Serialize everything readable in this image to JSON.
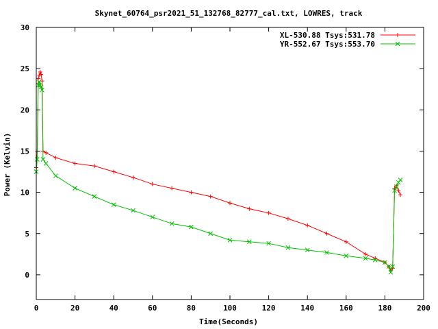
{
  "chart_data": {
    "type": "scatter",
    "title": "Skynet_60764_psr2021_51_132768_82777_cal.txt, LOWRES, track",
    "xlabel": "Time(Seconds)",
    "ylabel": "Power (Kelvin)",
    "xlim": [
      0,
      200
    ],
    "ylim": [
      -3,
      30
    ],
    "xticks": [
      0,
      20,
      40,
      60,
      80,
      100,
      120,
      140,
      160,
      180,
      200
    ],
    "yticks": [
      0,
      5,
      10,
      15,
      20,
      25,
      30
    ],
    "grid": false,
    "legend_position": "top-right",
    "series": [
      {
        "name": "XL-530.88 Tsys:531.78",
        "color": "#ff0000",
        "marker": "plus",
        "x": [
          0,
          0.5,
          1,
          1.5,
          2,
          2.5,
          3,
          3.5,
          5,
          10,
          20,
          30,
          40,
          50,
          60,
          70,
          80,
          90,
          100,
          110,
          120,
          130,
          140,
          150,
          160,
          170,
          175,
          180,
          182,
          183,
          184,
          185,
          186,
          187,
          188
        ],
        "y": [
          13,
          15,
          23.8,
          24.2,
          24.6,
          24.3,
          23.5,
          15,
          14.8,
          14.2,
          13.5,
          13.2,
          12.5,
          11.8,
          11.0,
          10.5,
          10.0,
          9.5,
          8.7,
          8.0,
          7.5,
          6.8,
          6.0,
          5.0,
          4.0,
          2.5,
          2.0,
          1.5,
          1.0,
          0.5,
          0.8,
          10.5,
          10.8,
          10.2,
          9.7
        ]
      },
      {
        "name": "YR-552.67 Tsys:553.70",
        "color": "#00c000",
        "marker": "cross",
        "x": [
          0,
          0.5,
          1,
          1.5,
          2,
          2.5,
          3,
          3.5,
          5,
          10,
          20,
          30,
          40,
          50,
          60,
          70,
          80,
          90,
          100,
          110,
          120,
          130,
          140,
          150,
          160,
          170,
          175,
          180,
          182,
          183,
          184,
          185,
          186,
          187,
          188
        ],
        "y": [
          12.5,
          14,
          23,
          23.4,
          23.0,
          22.8,
          22.4,
          14,
          13.5,
          12.0,
          10.5,
          9.5,
          8.5,
          7.8,
          7.0,
          6.2,
          5.8,
          5.0,
          4.2,
          4.0,
          3.8,
          3.3,
          3.0,
          2.7,
          2.3,
          2.0,
          1.8,
          1.5,
          1.0,
          0.3,
          1.0,
          10.2,
          10.7,
          11.2,
          11.5
        ]
      }
    ]
  }
}
